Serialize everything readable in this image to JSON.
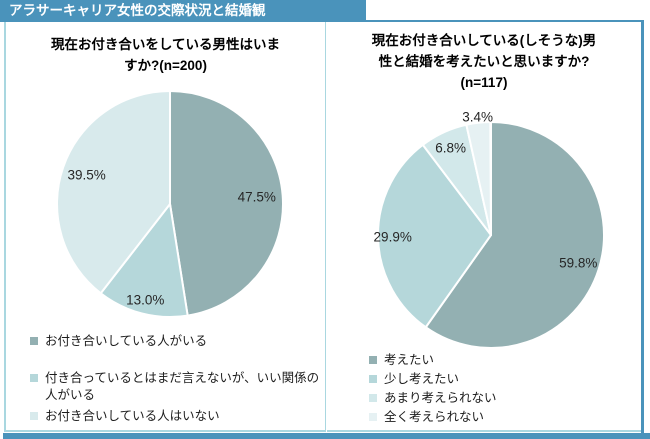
{
  "header": {
    "title": "アラサーキャリア女性の交際状況と結婚観"
  },
  "colors": {
    "accent_blue": "#4A93BB",
    "panel_border": "#A9D7E0",
    "header_text": "#FFFFFF",
    "title_text": "#000000",
    "label_text": "#262626",
    "series": [
      "#93B0B2",
      "#B5D7DA",
      "#D8EAEC",
      "#E6F1F3"
    ]
  },
  "chart_data": [
    {
      "type": "pie",
      "title": "現在お付き合いをしている男性はいますか?(n=200)",
      "title_lines": [
        "現在お付き合いをしている男性はいま",
        "すか?(n=200)"
      ],
      "sample_size": 200,
      "start_angle": "top",
      "direction": "clockwise",
      "legend_position": "bottom-left",
      "slices": [
        {
          "label": "お付き合いしている人がいる",
          "value": 47.5,
          "display": "47.5%",
          "color": "#93B0B2",
          "label_radius_frac": 0.77
        },
        {
          "label": "付き合っているとはまだ言えないが、いい関係の人がいる",
          "value": 13.0,
          "display": "13.0%",
          "color": "#B5D7DA",
          "label_radius_frac": 0.88
        },
        {
          "label": "お付き合いしている人はいない",
          "value": 39.5,
          "display": "39.5%",
          "color": "#D8EAEC",
          "label_radius_frac": 0.78
        }
      ]
    },
    {
      "type": "pie",
      "title": "現在お付き合いしている(しそうな)男性と結婚を考えたいと思いますか?(n=117)",
      "title_lines": [
        "現在お付き合いしている(しそうな)男",
        "性と結婚を考えたいと思いますか?",
        "(n=117)"
      ],
      "sample_size": 117,
      "start_angle": "top",
      "direction": "clockwise",
      "legend_position": "bottom-left",
      "slices": [
        {
          "label": "考えたい",
          "value": 59.8,
          "display": "59.8%",
          "color": "#93B0B2",
          "label_radius_frac": 0.81
        },
        {
          "label": "少し考えたい",
          "value": 29.9,
          "display": "29.9%",
          "color": "#B5D7DA",
          "label_radius_frac": 0.87
        },
        {
          "label": "あまり考えられない",
          "value": 6.8,
          "display": "6.8%",
          "color": "#D2E8EA",
          "label_radius_frac": 0.85
        },
        {
          "label": "全く考えられない",
          "value": 3.4,
          "display": "3.4%",
          "color": "#E6F1F3",
          "label_radius_frac": 1.05
        }
      ]
    }
  ]
}
